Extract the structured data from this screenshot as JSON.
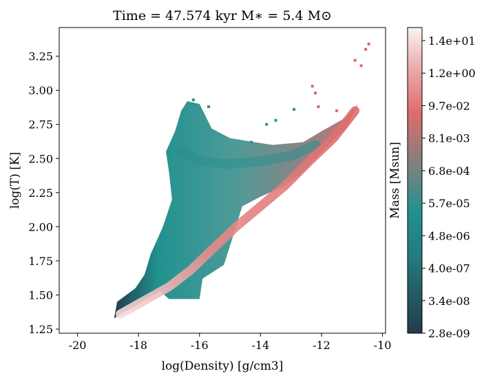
{
  "chart_data": {
    "type": "heatmap",
    "title": "Time = 47.574 kyr    M∗ = 5.4 M⊙",
    "xlabel": "log(Density) [g/cm3]",
    "ylabel": "log(T) [K]",
    "xlim": [
      -20.6,
      -9.9
    ],
    "ylim": [
      1.22,
      3.46
    ],
    "xticks": [
      -20,
      -18,
      -16,
      -14,
      -12,
      -10
    ],
    "xtick_labels": [
      "-20",
      "-18",
      "-16",
      "-14",
      "-12",
      "-10"
    ],
    "yticks": [
      1.25,
      1.5,
      1.75,
      2.0,
      2.25,
      2.5,
      2.75,
      3.0,
      3.25
    ],
    "ytick_labels": [
      "1.25",
      "1.50",
      "1.75",
      "2.00",
      "2.25",
      "2.50",
      "2.75",
      "3.00",
      "3.25"
    ],
    "colorbar": {
      "label": "Mass [Msun]",
      "scale": "log",
      "tick_labels": [
        "2.8e-09",
        "3.4e-08",
        "4.0e-07",
        "4.8e-06",
        "5.7e-05",
        "6.8e-04",
        "8.1e-03",
        "9.7e-02",
        "1.2e+00",
        "1.4e+01"
      ],
      "colors": [
        "#243b4a",
        "#21928f",
        "#808080",
        "#df6b6b",
        "#fcf3f3"
      ]
    },
    "grid": false,
    "region_outline_rho_T": [
      [
        -18.8,
        1.33
      ],
      [
        -18.1,
        1.42
      ],
      [
        -17.3,
        1.53
      ],
      [
        -17.0,
        1.47
      ],
      [
        -16.0,
        1.47
      ],
      [
        -15.9,
        1.62
      ],
      [
        -15.2,
        1.72
      ],
      [
        -14.9,
        1.93
      ],
      [
        -14.6,
        2.15
      ],
      [
        -14.0,
        2.22
      ],
      [
        -13.2,
        2.3
      ],
      [
        -12.6,
        2.4
      ],
      [
        -11.9,
        2.57
      ],
      [
        -11.2,
        2.72
      ],
      [
        -10.8,
        2.9
      ],
      [
        -11.2,
        2.8
      ],
      [
        -12.0,
        2.7
      ],
      [
        -12.6,
        2.62
      ],
      [
        -13.6,
        2.6
      ],
      [
        -14.2,
        2.62
      ],
      [
        -15.0,
        2.65
      ],
      [
        -15.6,
        2.72
      ],
      [
        -16.0,
        2.9
      ],
      [
        -16.4,
        2.92
      ],
      [
        -16.6,
        2.85
      ],
      [
        -16.8,
        2.7
      ],
      [
        -17.1,
        2.55
      ],
      [
        -17.0,
        2.4
      ],
      [
        -16.9,
        2.2
      ],
      [
        -17.2,
        2.0
      ],
      [
        -17.6,
        1.8
      ],
      [
        -17.8,
        1.65
      ],
      [
        -18.1,
        1.55
      ],
      [
        -18.7,
        1.45
      ]
    ],
    "dense_cold_track_rho_T": [
      [
        -18.6,
        1.36
      ],
      [
        -17.8,
        1.46
      ],
      [
        -17.0,
        1.56
      ],
      [
        -16.3,
        1.68
      ],
      [
        -15.6,
        1.83
      ],
      [
        -14.8,
        2.0
      ],
      [
        -14.0,
        2.15
      ],
      [
        -13.2,
        2.3
      ],
      [
        -12.4,
        2.48
      ],
      [
        -11.6,
        2.65
      ],
      [
        -10.9,
        2.85
      ]
    ],
    "warm_branch_rho_T": [
      [
        -16.6,
        2.55
      ],
      [
        -16.0,
        2.48
      ],
      [
        -15.0,
        2.46
      ],
      [
        -14.0,
        2.48
      ],
      [
        -13.0,
        2.52
      ],
      [
        -12.2,
        2.6
      ]
    ],
    "scatter_outliers_rho_T": [
      [
        -10.7,
        3.18
      ],
      [
        -10.55,
        3.3
      ],
      [
        -10.45,
        3.34
      ],
      [
        -10.9,
        3.22
      ],
      [
        -12.3,
        3.03
      ],
      [
        -12.2,
        2.98
      ],
      [
        -13.5,
        2.78
      ],
      [
        -13.8,
        2.75
      ],
      [
        -15.7,
        2.88
      ],
      [
        -16.2,
        2.93
      ],
      [
        -12.9,
        2.86
      ],
      [
        -12.1,
        2.88
      ],
      [
        -11.5,
        2.85
      ],
      [
        -14.3,
        2.62
      ],
      [
        -12.8,
        2.52
      ]
    ]
  }
}
